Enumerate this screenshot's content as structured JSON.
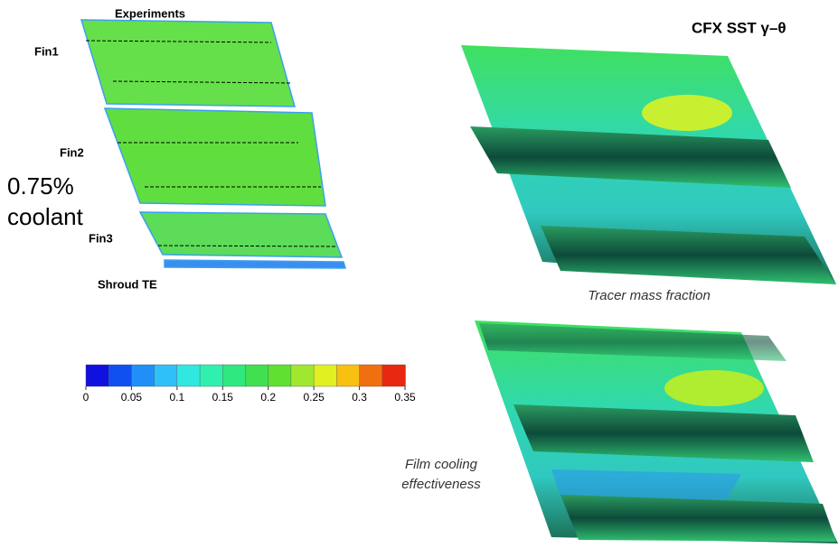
{
  "title": "CFX SST γ–θ",
  "experiment": {
    "title": "Experiments",
    "fins": [
      "Fin1",
      "Fin2",
      "Fin3"
    ],
    "shroud": "Shroud TE"
  },
  "coolant": [
    "0.75%",
    "coolant"
  ],
  "captions": {
    "tracer": "Tracer mass fraction",
    "film": [
      "Film cooling",
      "effectiveness"
    ]
  },
  "colorbar": {
    "lim": [
      0,
      0.35
    ],
    "ticks": [
      0,
      0.05,
      0.1,
      0.15,
      0.2,
      0.25,
      0.3,
      0.35
    ],
    "colors": [
      "#1010e0",
      "#1050f0",
      "#2090f8",
      "#30c0f8",
      "#30e8e0",
      "#30f0b0",
      "#30e880",
      "#40e050",
      "#60e030",
      "#a0e830",
      "#e0f020",
      "#f8c010",
      "#f07010",
      "#e82810"
    ]
  }
}
